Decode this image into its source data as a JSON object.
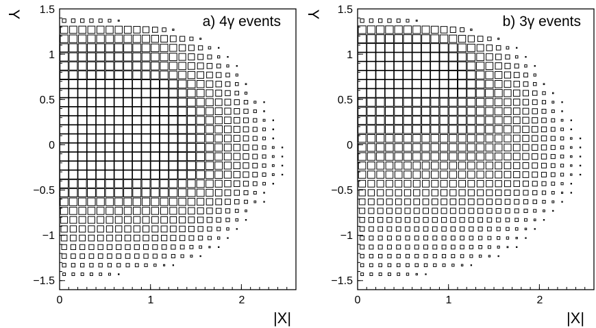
{
  "chart_data": [
    {
      "type": "heatmap",
      "title": "a) 4γ events",
      "xlabel": "|X|",
      "ylabel": "Y",
      "xlim": [
        0,
        2.6
      ],
      "ylim": [
        -1.6,
        1.5
      ],
      "xticks": [
        "0",
        "1",
        "2"
      ],
      "xtick_values": [
        0,
        1,
        2
      ],
      "yticks": [
        "1.5",
        "1",
        "0.5",
        "0",
        "−0.5",
        "−1",
        "−1.5"
      ],
      "ytick_values": [
        1.5,
        1,
        0.5,
        0,
        -0.5,
        -1,
        -1.5
      ],
      "bin_width": 0.1,
      "box_style": "box size ∝ bin content",
      "y_bin_centers": [
        1.37,
        1.27,
        1.17,
        1.07,
        0.97,
        0.87,
        0.77,
        0.67,
        0.57,
        0.47,
        0.37,
        0.27,
        0.17,
        0.07,
        -0.03,
        -0.13,
        -0.23,
        -0.33,
        -0.43,
        -0.53,
        -0.63,
        -0.73,
        -0.83,
        -0.93,
        -1.03,
        -1.13,
        -1.23,
        -1.33,
        -1.43
      ],
      "row_max_abs_x": [
        0.7,
        1.3,
        1.6,
        1.75,
        1.85,
        1.95,
        2.05,
        2.1,
        2.15,
        2.25,
        2.3,
        2.35,
        2.4,
        2.4,
        2.45,
        2.45,
        2.45,
        2.45,
        2.4,
        2.3,
        2.25,
        2.15,
        2.1,
        2.0,
        1.9,
        1.75,
        1.6,
        1.25,
        0.7
      ],
      "peak_sizes": [
        0.4,
        0.8,
        0.85,
        0.9,
        0.9,
        0.9,
        0.9,
        0.95,
        0.95,
        0.95,
        0.95,
        0.95,
        0.95,
        0.95,
        0.95,
        0.95,
        0.95,
        0.95,
        0.9,
        0.9,
        0.85,
        0.8,
        0.75,
        0.7,
        0.65,
        0.55,
        0.5,
        0.4,
        0.3
      ]
    },
    {
      "type": "heatmap",
      "title": "b) 3γ events",
      "xlabel": "|X|",
      "ylabel": "Y",
      "xlim": [
        0,
        2.6
      ],
      "ylim": [
        -1.6,
        1.5
      ],
      "xticks": [
        "0",
        "1",
        "2"
      ],
      "xtick_values": [
        0,
        1,
        2
      ],
      "yticks": [
        "1.5",
        "1",
        "0.5",
        "0",
        "−0.5",
        "−1",
        "−1.5"
      ],
      "ytick_values": [
        1.5,
        1,
        0.5,
        0,
        -0.5,
        -1,
        -1.5
      ],
      "bin_width": 0.1,
      "box_style": "box size ∝ bin content",
      "y_bin_centers": [
        1.37,
        1.27,
        1.17,
        1.07,
        0.97,
        0.87,
        0.77,
        0.67,
        0.57,
        0.47,
        0.37,
        0.27,
        0.17,
        0.07,
        -0.03,
        -0.13,
        -0.23,
        -0.33,
        -0.43,
        -0.53,
        -0.63,
        -0.73,
        -0.83,
        -0.93,
        -1.03,
        -1.13,
        -1.23,
        -1.33,
        -1.43
      ],
      "row_max_abs_x": [
        0.7,
        1.3,
        1.6,
        1.75,
        1.85,
        1.95,
        2.05,
        2.1,
        2.2,
        2.25,
        2.3,
        2.35,
        2.4,
        2.45,
        2.45,
        2.45,
        2.45,
        2.45,
        2.4,
        2.35,
        2.3,
        2.2,
        2.1,
        2.0,
        1.9,
        1.75,
        1.6,
        1.3,
        0.75
      ],
      "peak_sizes": [
        0.4,
        0.85,
        0.9,
        0.95,
        0.95,
        0.95,
        0.95,
        0.95,
        0.95,
        0.9,
        0.9,
        0.9,
        0.9,
        0.85,
        0.85,
        0.85,
        0.8,
        0.8,
        0.75,
        0.7,
        0.65,
        0.6,
        0.55,
        0.5,
        0.45,
        0.45,
        0.4,
        0.35,
        0.3
      ]
    }
  ]
}
